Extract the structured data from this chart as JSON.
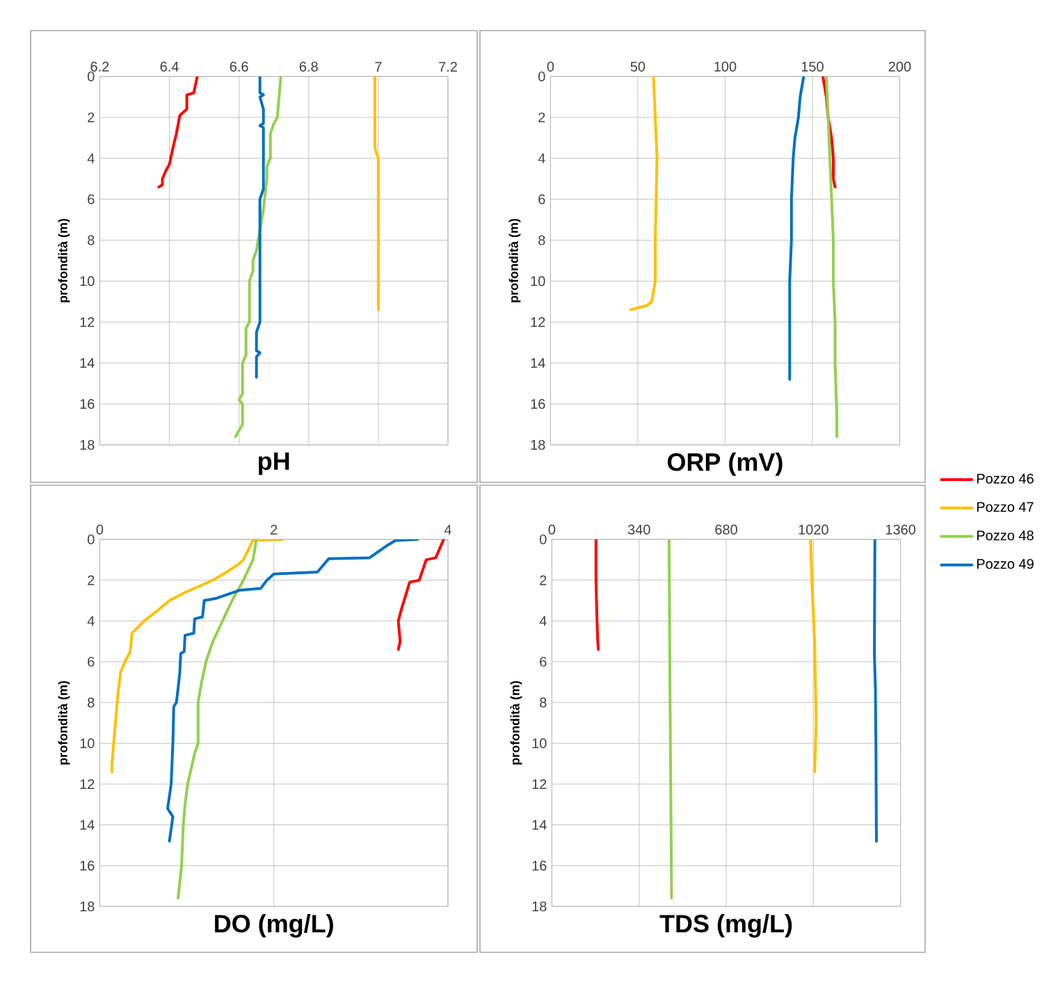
{
  "chart_data": [
    {
      "type": "line",
      "xlabel": "pH",
      "ylabel": "profondità (m)",
      "xlim": [
        6.2,
        7.2
      ],
      "xticks": [
        6.2,
        6.4,
        6.6,
        6.8,
        7,
        7.2
      ],
      "ylim": [
        18,
        0
      ],
      "yticks": [
        0,
        2,
        4,
        6,
        8,
        10,
        12,
        14,
        16,
        18
      ],
      "grid": true,
      "legend": "right",
      "series": [
        {
          "name": "Pozzo 46",
          "color": "#ff0000",
          "x": [
            6.48,
            6.47,
            6.45,
            6.45,
            6.43,
            6.42,
            6.41,
            6.4,
            6.39,
            6.38,
            6.38,
            6.37
          ],
          "values": [
            0,
            0.8,
            0.9,
            1.6,
            1.9,
            2.8,
            3.5,
            4.3,
            4.6,
            5.0,
            5.3,
            5.4
          ]
        },
        {
          "name": "Pozzo 47",
          "color": "#ffc000",
          "x": [
            6.99,
            6.99,
            7.0,
            7.0
          ],
          "values": [
            0,
            3.5,
            4.0,
            11.4
          ]
        },
        {
          "name": "Pozzo 48",
          "color": "#92d050",
          "x": [
            6.72,
            6.71,
            6.7,
            6.69,
            6.69,
            6.68,
            6.68,
            6.67,
            6.66,
            6.65,
            6.64,
            6.64,
            6.63,
            6.63,
            6.62,
            6.62,
            6.61,
            6.61,
            6.6,
            6.61,
            6.61,
            6.6,
            6.59
          ],
          "values": [
            0,
            2,
            2.3,
            2.8,
            4,
            4.4,
            5,
            6.5,
            7.5,
            8.5,
            9,
            9.5,
            10,
            12,
            12.3,
            13.6,
            14,
            15.5,
            15.8,
            16,
            17,
            17.3,
            17.6
          ]
        },
        {
          "name": "Pozzo 49",
          "color": "#0070c0",
          "x": [
            6.66,
            6.66,
            6.67,
            6.66,
            6.67,
            6.67,
            6.66,
            6.67,
            6.67,
            6.66,
            6.66,
            6.65,
            6.65,
            6.66,
            6.65,
            6.65
          ],
          "values": [
            0,
            0.8,
            0.9,
            1.0,
            1.6,
            2.3,
            2.4,
            2.5,
            5.5,
            6,
            12,
            12.5,
            13.4,
            13.5,
            13.7,
            14.7
          ]
        }
      ]
    },
    {
      "type": "line",
      "xlabel": "ORP (mV)",
      "ylabel": "profondità (m)",
      "xlim": [
        0,
        200
      ],
      "xticks": [
        0,
        50,
        100,
        150,
        200
      ],
      "ylim": [
        18,
        0
      ],
      "yticks": [
        0,
        2,
        4,
        6,
        8,
        10,
        12,
        14,
        16,
        18
      ],
      "grid": true,
      "series": [
        {
          "color": "#ff0000",
          "x": [
            156,
            158,
            159,
            161,
            162,
            162,
            163
          ],
          "values": [
            0,
            1,
            2,
            3,
            4,
            5,
            5.4
          ]
        },
        {
          "color": "#ffc000",
          "x": [
            59,
            60,
            61,
            60,
            60,
            58,
            55,
            50,
            46
          ],
          "values": [
            0,
            2,
            4,
            8,
            10,
            11,
            11.2,
            11.3,
            11.4
          ]
        },
        {
          "color": "#92d050",
          "x": [
            158,
            159,
            160,
            161,
            162,
            162,
            163,
            163,
            164,
            164,
            164
          ],
          "values": [
            0,
            2,
            4,
            6,
            8,
            10,
            12,
            14,
            16.5,
            16.8,
            17.6
          ]
        },
        {
          "color": "#0070c0",
          "x": [
            145,
            143,
            142,
            140,
            139,
            138,
            138,
            137,
            137
          ],
          "values": [
            0,
            1,
            2,
            3,
            4,
            6,
            8,
            10,
            14.8
          ]
        }
      ]
    },
    {
      "type": "line",
      "xlabel": "DO (mg/L)",
      "ylabel": "profondità (m)",
      "xlim": [
        0,
        4
      ],
      "xticks": [
        0,
        2,
        4
      ],
      "ylim": [
        18,
        0
      ],
      "yticks": [
        0,
        2,
        4,
        6,
        8,
        10,
        12,
        14,
        16,
        18
      ],
      "grid": true,
      "series": [
        {
          "color": "#ff0000",
          "x": [
            3.95,
            3.86,
            3.75,
            3.67,
            3.56,
            3.51,
            3.46,
            3.43,
            3.45,
            3.43
          ],
          "values": [
            0,
            0.9,
            1.0,
            2,
            2.1,
            2.8,
            3.5,
            4,
            5,
            5.4
          ]
        },
        {
          "color": "#ffc000",
          "x": [
            2.1,
            1.76,
            1.65,
            1.6,
            1.46,
            1.3,
            1.14,
            0.98,
            0.8,
            0.66,
            0.51,
            0.37,
            0.35,
            0.29,
            0.24,
            0.21,
            0.19,
            0.16,
            0.14,
            0.14
          ],
          "values": [
            0,
            0.05,
            1,
            1.2,
            1.6,
            2,
            2.3,
            2.6,
            3,
            3.5,
            4,
            4.6,
            5.5,
            6,
            6.5,
            7.5,
            8.5,
            10,
            11,
            11.4
          ]
        },
        {
          "color": "#92d050",
          "x": [
            1.8,
            1.76,
            1.65,
            1.52,
            1.41,
            1.3,
            1.22,
            1.17,
            1.13,
            1.13,
            1.09,
            1.01,
            0.98,
            0.96,
            0.94,
            0.9
          ],
          "values": [
            0,
            1,
            2,
            3,
            4,
            5,
            6,
            7,
            8,
            10,
            10.5,
            12,
            13,
            14,
            16,
            17.6
          ]
        },
        {
          "color": "#0070c0",
          "x": [
            3.65,
            3.4,
            3.3,
            3.1,
            2.63,
            2.5,
            2.0,
            1.92,
            1.85,
            1.6,
            1.33,
            1.2,
            1.18,
            1.09,
            1.08,
            0.98,
            0.97,
            0.93,
            0.92,
            0.9,
            0.88,
            0.85,
            0.84,
            0.82,
            0.78,
            0.84,
            0.8
          ],
          "values": [
            0,
            0.05,
            0.3,
            0.9,
            0.95,
            1.6,
            1.7,
            2,
            2.4,
            2.5,
            2.9,
            3.0,
            3.8,
            3.9,
            4.6,
            4.7,
            5.5,
            5.6,
            6.5,
            7.3,
            8,
            8.2,
            10,
            12,
            13.2,
            13.6,
            14.8
          ]
        }
      ]
    },
    {
      "type": "line",
      "xlabel": "TDS (mg/L)",
      "ylabel": "profondità (m)",
      "xlim": [
        0,
        1360
      ],
      "xticks": [
        0,
        340,
        680,
        1020,
        1360
      ],
      "ylim": [
        18,
        0
      ],
      "yticks": [
        0,
        2,
        4,
        6,
        8,
        10,
        12,
        14,
        16,
        18
      ],
      "grid": true,
      "series": [
        {
          "color": "#ff0000",
          "x": [
            172,
            172,
            176,
            179,
            181
          ],
          "values": [
            0,
            2,
            4,
            5,
            5.4
          ]
        },
        {
          "color": "#ffc000",
          "x": [
            1009,
            1014,
            1025,
            1031,
            1025
          ],
          "values": [
            0,
            2,
            5,
            9,
            11.4
          ]
        },
        {
          "color": "#92d050",
          "x": [
            457,
            461,
            467
          ],
          "values": [
            0,
            8,
            17.6
          ]
        },
        {
          "color": "#0070c0",
          "x": [
            1260,
            1258,
            1262,
            1264,
            1266
          ],
          "values": [
            0,
            5.6,
            7.3,
            10,
            14.8
          ]
        }
      ]
    }
  ]
}
